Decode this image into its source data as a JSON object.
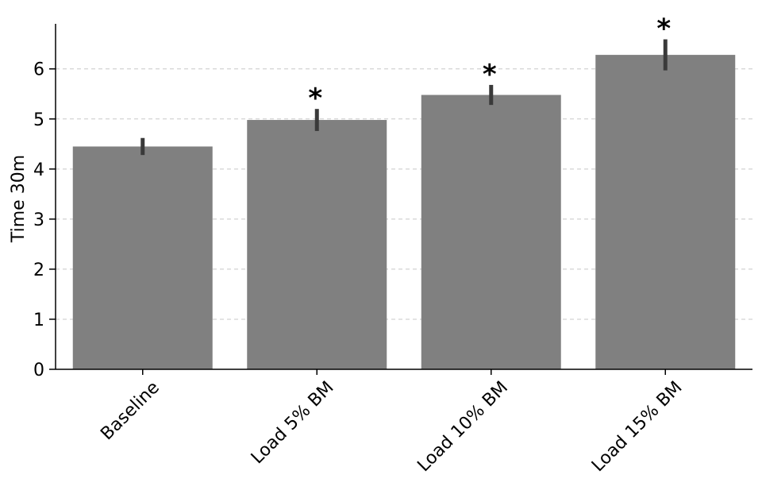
{
  "chart_data": {
    "type": "bar",
    "categories": [
      "Baseline",
      "Load 5% BM",
      "Load 10% BM",
      "Load 15% BM"
    ],
    "values": [
      4.45,
      4.98,
      5.48,
      6.28
    ],
    "error": [
      0.17,
      0.22,
      0.2,
      0.31
    ],
    "significance": [
      "",
      "*",
      "*",
      "*"
    ],
    "title": "",
    "xlabel": "",
    "ylabel": "Time 30m",
    "ylim": [
      0,
      6.9
    ],
    "yticks": [
      0,
      1,
      2,
      3,
      4,
      5,
      6
    ],
    "grid": true,
    "colors": {
      "bar": "#808080",
      "error": "#3a3a3a",
      "grid": "#c8c8c8",
      "axis": "#000000"
    }
  }
}
